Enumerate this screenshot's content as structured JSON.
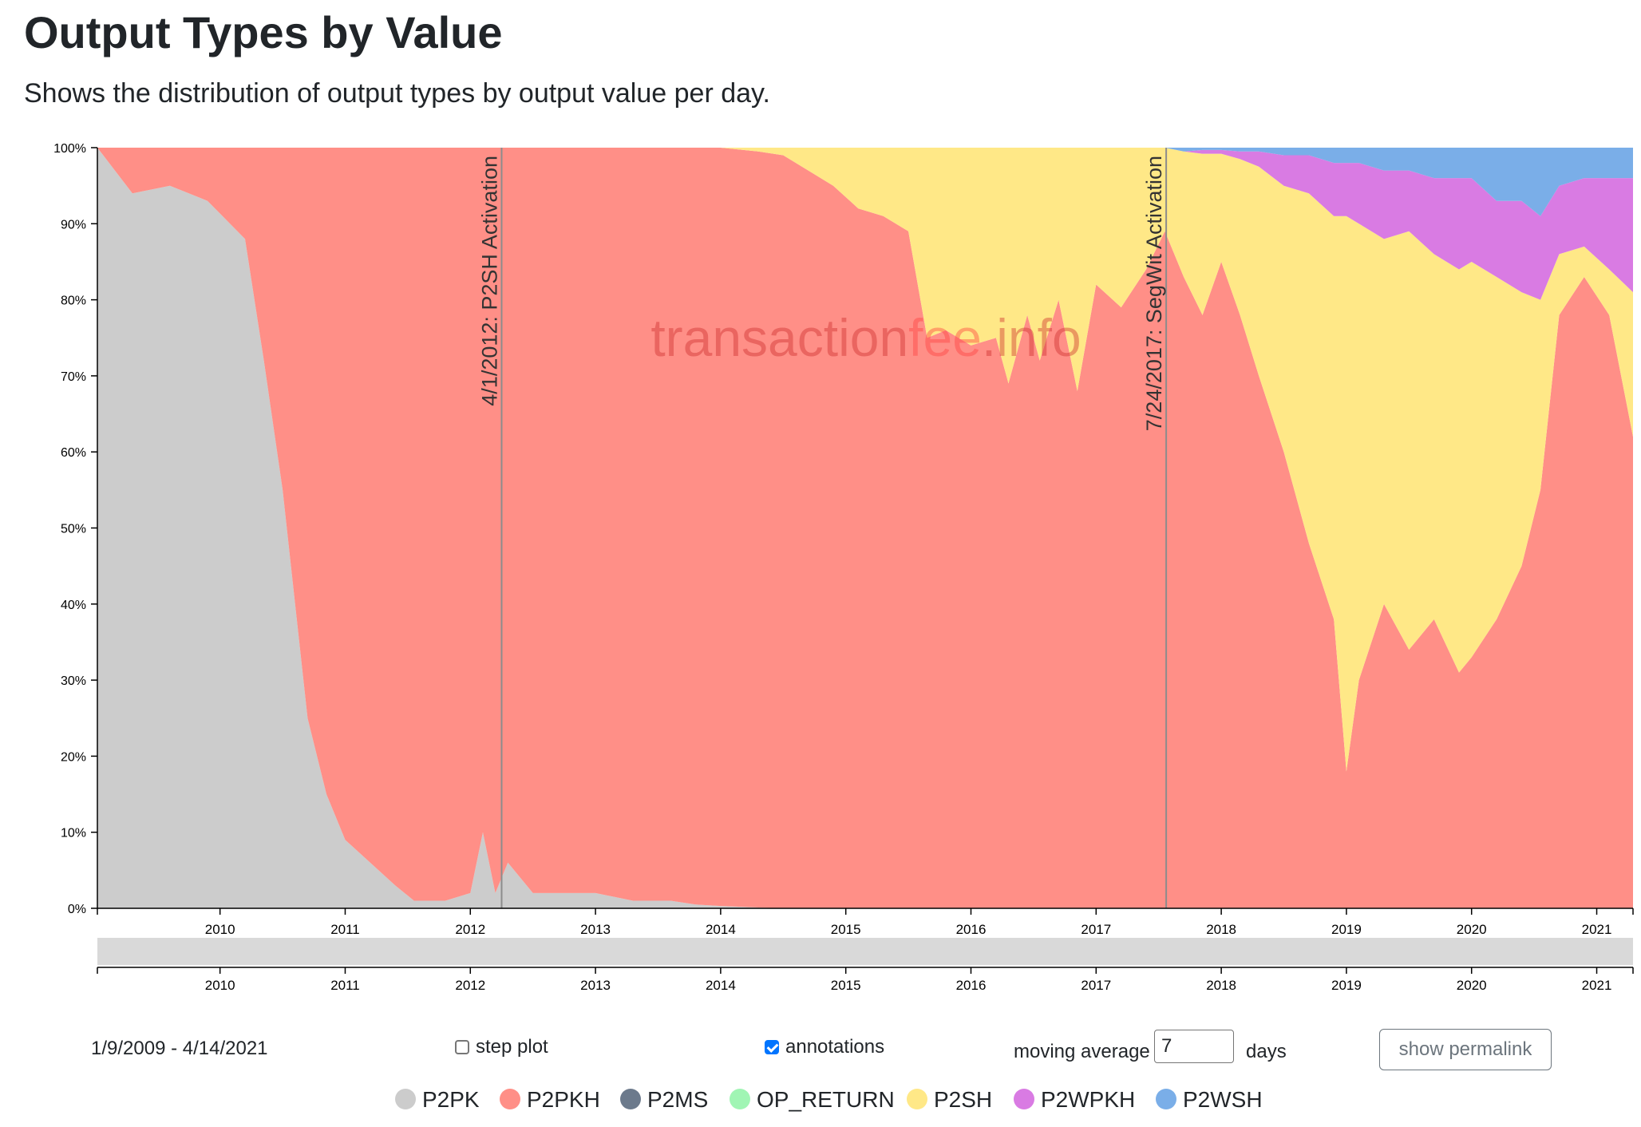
{
  "header": {
    "title": "Output Types by Value",
    "subtitle": "Shows the distribution of output types by output value per day."
  },
  "watermark": {
    "part1": "transaction",
    "part2": "fee",
    "part3": ".info"
  },
  "colors": {
    "p2pk": "#cccccc",
    "p2pkh": "#ff8f87",
    "p2ms": "#6c7a8c",
    "op_return": "#a0f5b4",
    "p2sh": "#ffe887",
    "p2wpkh": "#d97be3",
    "p2wsh": "#7aaee8",
    "brush": "#d9d9d9",
    "annotation_line": "#8c8c8c",
    "watermark_text": "#cc2a2a",
    "watermark_fee": "#ff3d3d"
  },
  "chart_data": {
    "type": "area",
    "stacked": "percent",
    "title": "Output Types by Value",
    "xlabel": "",
    "ylabel": "",
    "x_domain": [
      2009.02,
      2021.29
    ],
    "ylim": [
      0,
      100
    ],
    "y_ticks": [
      "0%",
      "10%",
      "20%",
      "30%",
      "40%",
      "50%",
      "60%",
      "70%",
      "80%",
      "90%",
      "100%"
    ],
    "x_ticks": [
      "2010",
      "2011",
      "2012",
      "2013",
      "2014",
      "2015",
      "2016",
      "2017",
      "2018",
      "2019",
      "2020",
      "2021"
    ],
    "x": [
      2009.02,
      2009.3,
      2009.6,
      2009.9,
      2010.2,
      2010.35,
      2010.5,
      2010.7,
      2010.85,
      2011.0,
      2011.2,
      2011.4,
      2011.55,
      2011.8,
      2012.0,
      2012.1,
      2012.2,
      2012.3,
      2012.5,
      2012.8,
      2013.0,
      2013.3,
      2013.6,
      2013.8,
      2014.0,
      2014.3,
      2014.5,
      2014.7,
      2014.9,
      2015.1,
      2015.3,
      2015.5,
      2015.65,
      2015.8,
      2016.0,
      2016.2,
      2016.3,
      2016.45,
      2016.55,
      2016.7,
      2016.85,
      2017.0,
      2017.2,
      2017.4,
      2017.55,
      2017.7,
      2017.85,
      2018.0,
      2018.15,
      2018.3,
      2018.5,
      2018.7,
      2018.9,
      2019.0,
      2019.1,
      2019.3,
      2019.5,
      2019.7,
      2019.9,
      2020.0,
      2020.2,
      2020.4,
      2020.55,
      2020.7,
      2020.9,
      2021.1,
      2021.29
    ],
    "series": [
      {
        "name": "P2PK",
        "values": [
          100,
          94,
          95,
          93,
          88,
          72,
          55,
          25,
          15,
          9,
          6,
          3,
          1,
          1,
          2,
          10,
          2,
          6,
          2,
          2,
          2,
          1,
          1,
          0.5,
          0.3,
          0.1,
          0,
          0,
          0,
          0,
          0,
          0,
          0,
          0,
          0,
          0,
          0,
          0,
          0,
          0,
          0,
          0,
          0,
          0,
          0,
          0,
          0,
          0,
          0,
          0,
          0,
          0,
          0,
          0,
          0,
          0,
          0,
          0,
          0,
          0,
          0,
          0,
          0,
          0,
          0,
          0,
          0
        ]
      },
      {
        "name": "P2PKH",
        "values": [
          0,
          6,
          5,
          7,
          12,
          28,
          45,
          75,
          85,
          91,
          94,
          97,
          99,
          99,
          98,
          90,
          98,
          94,
          98,
          98,
          98,
          99,
          99,
          99.5,
          99.7,
          99.4,
          99,
          97,
          95,
          92,
          91,
          89,
          75,
          76,
          74,
          75,
          69,
          78,
          72,
          80,
          68,
          82,
          79,
          84,
          89,
          83,
          78,
          85,
          78,
          70,
          60,
          48,
          38,
          18,
          30,
          40,
          34,
          38,
          31,
          33,
          38,
          45,
          55,
          78,
          83,
          78,
          62
        ]
      },
      {
        "name": "P2MS",
        "values": [
          0,
          0,
          0,
          0,
          0,
          0,
          0,
          0,
          0,
          0,
          0,
          0,
          0,
          0,
          0,
          0,
          0,
          0,
          0,
          0,
          0,
          0,
          0,
          0,
          0,
          0,
          0,
          0,
          0,
          0,
          0,
          0,
          0,
          0,
          0,
          0,
          0,
          0,
          0,
          0,
          0,
          0,
          0,
          0,
          0,
          0,
          0,
          0,
          0,
          0,
          0,
          0,
          0,
          0,
          0,
          0,
          0,
          0,
          0,
          0,
          0,
          0,
          0,
          0,
          0,
          0,
          0
        ]
      },
      {
        "name": "OP_RETURN",
        "values": [
          0,
          0,
          0,
          0,
          0,
          0,
          0,
          0,
          0,
          0,
          0,
          0,
          0,
          0,
          0,
          0,
          0,
          0,
          0,
          0,
          0,
          0,
          0,
          0,
          0,
          0,
          0,
          0,
          0,
          0,
          0,
          0,
          0,
          0,
          0,
          0,
          0,
          0,
          0,
          0,
          0,
          0,
          0,
          0,
          0,
          0,
          0,
          0,
          0,
          0,
          0,
          0,
          0,
          0,
          0,
          0,
          0,
          0,
          0,
          0,
          0,
          0,
          0,
          0,
          0,
          0,
          0
        ]
      },
      {
        "name": "P2SH",
        "values": [
          0,
          0,
          0,
          0,
          0,
          0,
          0,
          0,
          0,
          0,
          0,
          0,
          0,
          0,
          0,
          0,
          0,
          0,
          0,
          0,
          0,
          0,
          0,
          0,
          0,
          0.5,
          1,
          3,
          5,
          8,
          9,
          11,
          25,
          24,
          26,
          25,
          31,
          22,
          28,
          20,
          32,
          18,
          21,
          16,
          11,
          16.5,
          21.2,
          14.2,
          20.5,
          27.5,
          35,
          46,
          53,
          73,
          60,
          48,
          55,
          48,
          53,
          52,
          45,
          36,
          25,
          8,
          4,
          6,
          19
        ]
      },
      {
        "name": "P2WPKH",
        "values": [
          0,
          0,
          0,
          0,
          0,
          0,
          0,
          0,
          0,
          0,
          0,
          0,
          0,
          0,
          0,
          0,
          0,
          0,
          0,
          0,
          0,
          0,
          0,
          0,
          0,
          0,
          0,
          0,
          0,
          0,
          0,
          0,
          0,
          0,
          0,
          0,
          0,
          0,
          0,
          0,
          0,
          0,
          0,
          0,
          0,
          0,
          0.5,
          0.5,
          1,
          2,
          4,
          5,
          7,
          7,
          8,
          9,
          8,
          10,
          12,
          11,
          10,
          12,
          11,
          9,
          9,
          12,
          15
        ]
      },
      {
        "name": "P2WSH",
        "values": [
          0,
          0,
          0,
          0,
          0,
          0,
          0,
          0,
          0,
          0,
          0,
          0,
          0,
          0,
          0,
          0,
          0,
          0,
          0,
          0,
          0,
          0,
          0,
          0,
          0,
          0,
          0,
          0,
          0,
          0,
          0,
          0,
          0,
          0,
          0,
          0,
          0,
          0,
          0,
          0,
          0,
          0,
          0,
          0,
          0,
          0.5,
          0.3,
          0.3,
          0.5,
          0.5,
          1,
          1,
          2,
          2,
          2,
          3,
          3,
          4,
          4,
          4,
          7,
          7,
          9,
          5,
          4,
          4,
          4
        ]
      }
    ],
    "annotations": [
      {
        "x": 2012.25,
        "label": "4/1/2012: P2SH Activation"
      },
      {
        "x": 2017.56,
        "label": "7/24/2017: SegWit Activation"
      }
    ],
    "legend_position": "bottom-center"
  },
  "controls": {
    "date_range": "1/9/2009 - 4/14/2021",
    "step_plot_label": "step plot",
    "step_plot_checked": false,
    "annotations_label": "annotations",
    "annotations_checked": true,
    "moving_average_label": "moving average",
    "moving_average_value": "7",
    "days_label": "days",
    "permalink_label": "show permalink"
  },
  "legend": [
    {
      "label": "P2PK",
      "color": "#cccccc"
    },
    {
      "label": "P2PKH",
      "color": "#ff8f87"
    },
    {
      "label": "P2MS",
      "color": "#6c7a8c"
    },
    {
      "label": "OP_RETURN",
      "color": "#a0f5b4"
    },
    {
      "label": "P2SH",
      "color": "#ffe887"
    },
    {
      "label": "P2WPKH",
      "color": "#d97be3"
    },
    {
      "label": "P2WSH",
      "color": "#7aaee8"
    }
  ]
}
